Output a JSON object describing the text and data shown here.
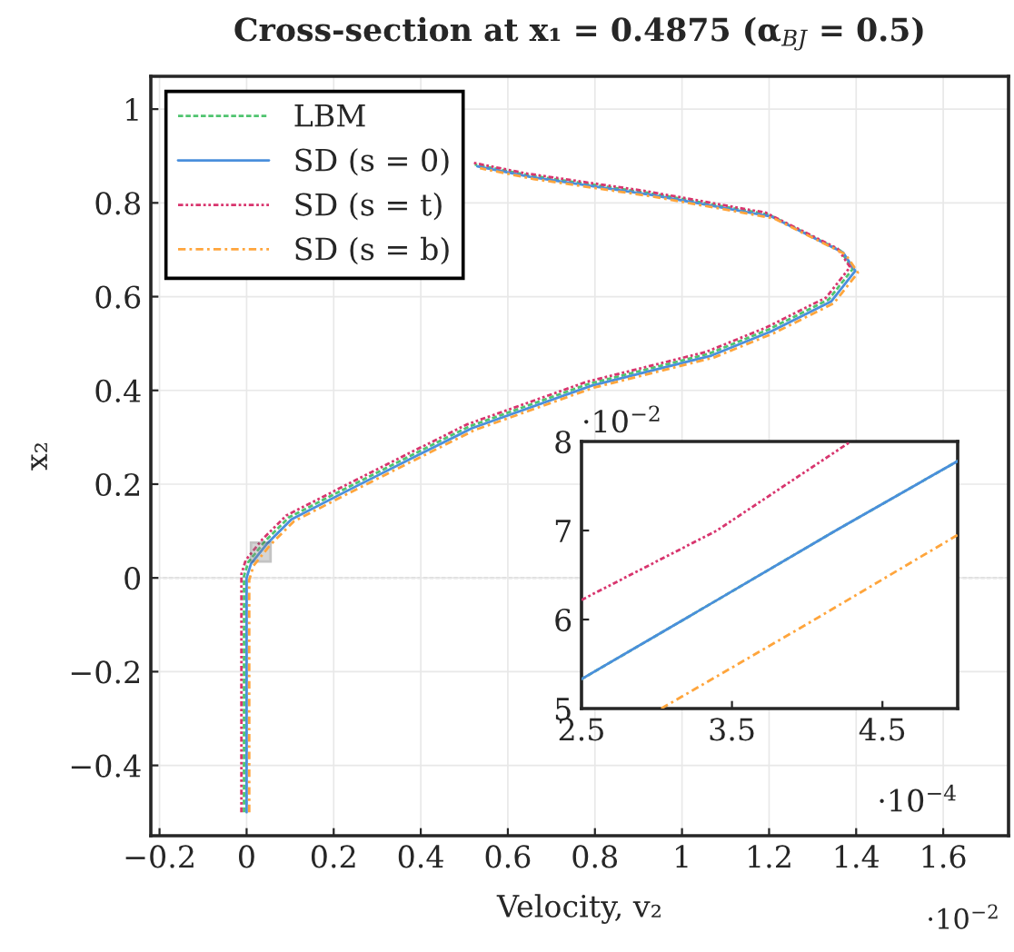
{
  "chart_data": [
    {
      "type": "line",
      "title": "Cross-section at x₁ = 0.4875 (α$_{BJ}$ = 0.5)",
      "xlabel": "Velocity, v₂",
      "ylabel": "x₂",
      "xlim": [
        -0.22,
        1.75
      ],
      "ylim": [
        -0.55,
        1.07
      ],
      "xticks": [
        {
          "value": -0.2,
          "label": "−0.2"
        },
        0,
        0.2,
        0.4,
        0.6,
        0.8,
        1,
        1.2,
        1.4,
        1.6
      ],
      "yticks": [
        {
          "value": -0.4,
          "label": "−0.4"
        },
        {
          "value": -0.2,
          "label": "−0.2"
        },
        0,
        0.2,
        0.4,
        0.6,
        0.8,
        1
      ],
      "grid": true,
      "legend": "top left",
      "annotations": [
        "·10$^{−2}$"
      ],
      "ref_lines": [
        {
          "axis": "y",
          "value": 0,
          "label": null,
          "color": "#bbbbbb",
          "line_style": "dashed"
        }
      ],
      "series": [
        {
          "name": "LBM",
          "color": "#4fc46f",
          "line_style": "dashed",
          "x": [
            -0.006,
            -0.006,
            0.004,
            0.042,
            0.097,
            0.234,
            0.373,
            0.511,
            0.786,
            1.061,
            1.199,
            1.337,
            1.392,
            1.364,
            1.199,
            0.924,
            0.647,
            0.524
          ],
          "values": [
            -0.5,
            0.004,
            0.034,
            0.078,
            0.129,
            0.194,
            0.259,
            0.323,
            0.414,
            0.478,
            0.53,
            0.594,
            0.659,
            0.698,
            0.775,
            0.821,
            0.859,
            0.882
          ]
        },
        {
          "name": "SD (s = 0)",
          "color": "#4a8fdc",
          "line_style": "solid",
          "x": [
            0,
            0,
            0.01,
            0.048,
            0.103,
            0.24,
            0.379,
            0.517,
            0.792,
            1.067,
            1.205,
            1.343,
            1.398,
            1.37,
            1.205,
            0.93,
            0.653,
            0.53
          ],
          "values": [
            -0.5,
            0,
            0.03,
            0.074,
            0.125,
            0.19,
            0.255,
            0.319,
            0.41,
            0.474,
            0.526,
            0.59,
            0.655,
            0.694,
            0.771,
            0.817,
            0.855,
            0.878
          ]
        },
        {
          "name": "SD (s = t)",
          "color": "#d8356e",
          "line_style": "dashdotdotted",
          "x": [
            -0.012,
            -0.012,
            -0.002,
            0.036,
            0.091,
            0.228,
            0.367,
            0.505,
            0.78,
            1.055,
            1.193,
            1.331,
            1.386,
            1.358,
            1.193,
            0.918,
            0.641,
            0.518
          ],
          "values": [
            -0.5,
            0.008,
            0.038,
            0.082,
            0.133,
            0.198,
            0.263,
            0.327,
            0.418,
            0.482,
            0.534,
            0.598,
            0.663,
            0.702,
            0.779,
            0.825,
            0.863,
            0.886
          ]
        },
        {
          "name": "SD (s = b)",
          "color": "#ffa53c",
          "line_style": "dashdot",
          "x": [
            0.006,
            0.006,
            0.016,
            0.054,
            0.109,
            0.246,
            0.385,
            0.523,
            0.798,
            1.073,
            1.211,
            1.349,
            1.404,
            1.376,
            1.211,
            0.936,
            0.659,
            0.536
          ],
          "values": [
            -0.5,
            -0.004,
            0.026,
            0.07,
            0.121,
            0.186,
            0.251,
            0.315,
            0.406,
            0.47,
            0.522,
            0.586,
            0.651,
            0.69,
            0.767,
            0.813,
            0.851,
            0.874
          ]
        }
      ]
    },
    {
      "type": "line",
      "xlim": [
        2.5,
        5
      ],
      "ylim": [
        5,
        8
      ],
      "xticks": [
        2.5,
        3.5,
        4.5
      ],
      "yticks": [
        5,
        6,
        7,
        8
      ],
      "annotations": [
        "·10$^{−2}$",
        "·10$^{−4}$"
      ],
      "series": [
        {
          "color": "#4fc46f",
          "line_style": "dashed",
          "x": [
            2.5,
            3.18,
            4.19,
            5.0
          ],
          "values": [
            5.33,
            6.0,
            7.0,
            7.78
          ]
        },
        {
          "color": "#4a8fdc",
          "line_style": "solid",
          "x": [
            2.5,
            3.18,
            4.19,
            5.0
          ],
          "values": [
            5.33,
            6.0,
            7.0,
            7.78
          ]
        },
        {
          "color": "#d8356e",
          "line_style": "dashdotdotted",
          "x": [
            2.5,
            3.4,
            4.29
          ],
          "values": [
            6.22,
            7.0,
            8.0
          ]
        },
        {
          "color": "#ffa53c",
          "line_style": "dashdot",
          "x": [
            3.03,
            4.0,
            5.0
          ],
          "values": [
            5.0,
            5.95,
            6.95
          ]
        }
      ]
    }
  ]
}
